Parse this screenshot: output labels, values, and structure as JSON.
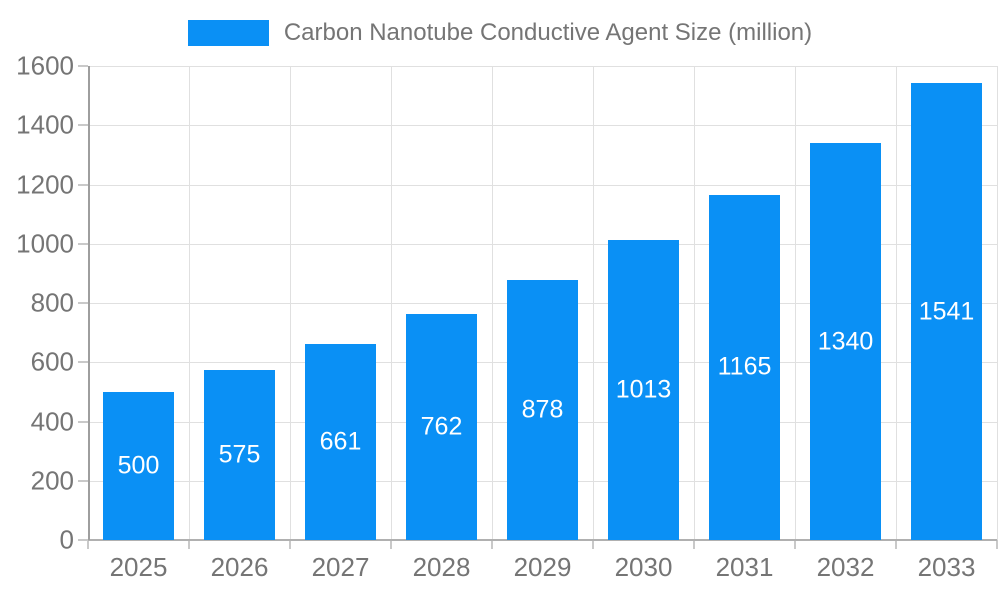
{
  "colors": {
    "bar": "#0a90f5",
    "bar_label": "#ffffff",
    "axis_text": "#757575",
    "grid_line": "#e0e0e0",
    "y_axis_line": "#9e9e9e",
    "x_axis_line": "#b0b0b0",
    "tick": "#c9c9c9"
  },
  "legend": {
    "label": "Carbon Nanotube Conductive Agent Size (million)"
  },
  "chart_data": {
    "type": "bar",
    "title": "Carbon Nanotube Conductive Agent Size (million)",
    "categories": [
      "2025",
      "2026",
      "2027",
      "2028",
      "2029",
      "2030",
      "2031",
      "2032",
      "2033"
    ],
    "values": [
      500,
      575,
      661,
      762,
      878,
      1013,
      1165,
      1340,
      1541
    ],
    "xlabel": "",
    "ylabel": "",
    "ylim": [
      0,
      1600
    ],
    "y_ticks": [
      0,
      200,
      400,
      600,
      800,
      1000,
      1200,
      1400,
      1600
    ],
    "grid": true,
    "legend_position": "top-center",
    "bar_labels": "inside-center",
    "bar_label_color": "#ffffff"
  }
}
